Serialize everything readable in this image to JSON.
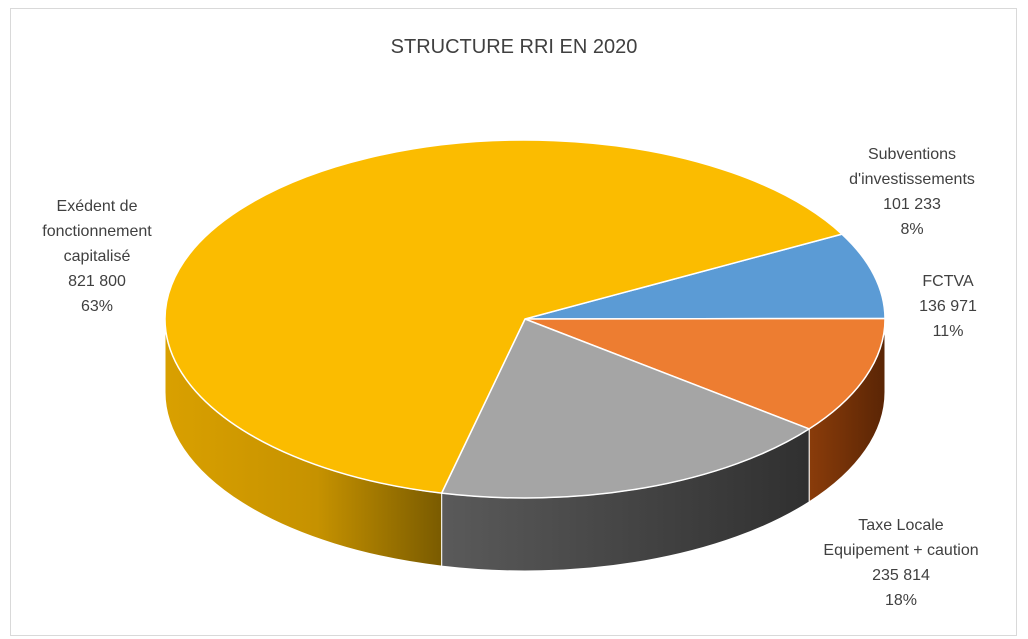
{
  "chart_data": {
    "type": "pie",
    "title": "STRUCTURE RRI EN 2020",
    "slices": [
      {
        "label_lines": [
          "Subventions",
          "d'investissements"
        ],
        "value": 101233,
        "value_text": "101 233",
        "percent_text": "8%",
        "color": "#5b9bd5",
        "side_color": "#2e5d8a"
      },
      {
        "label_lines": [
          "FCTVA"
        ],
        "value": 136971,
        "value_text": "136 971",
        "percent_text": "11%",
        "color": "#ed7d31",
        "side_color": "#6b3009"
      },
      {
        "label_lines": [
          "Taxe Locale",
          "Equipement + caution"
        ],
        "value": 235814,
        "value_text": "235 814",
        "percent_text": "18%",
        "color": "#a5a5a5",
        "side_color": "#3d3d3d"
      },
      {
        "label_lines": [
          "Exédent de",
          "fonctionnement",
          "capitalisé"
        ],
        "value": 821800,
        "value_text": "821 800",
        "percent_text": "63%",
        "color": "#fbbc00",
        "side_color": "#b88a00"
      }
    ],
    "legend": "none",
    "style": "3d"
  }
}
